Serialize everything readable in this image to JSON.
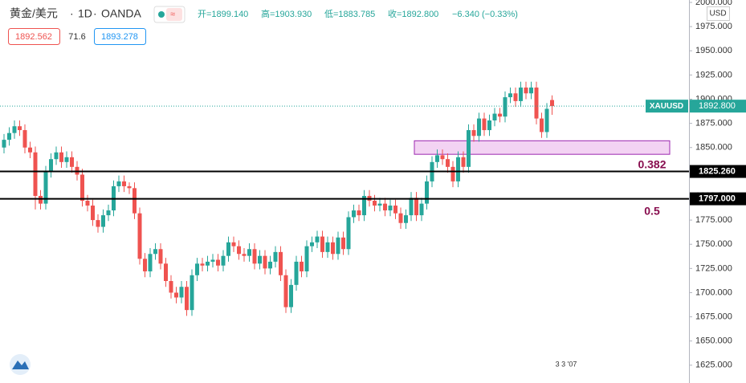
{
  "header": {
    "symbol": "黄金/美元",
    "interval": "1D",
    "source": "OANDA",
    "open": "开=1899.140",
    "high": "高=1903.930",
    "low": "低=1883.785",
    "close": "收=1892.800",
    "change": "−6.340 (−0.33%)",
    "sell": "1892.562",
    "spread": "71.6",
    "buy": "1893.278",
    "currency": "USD",
    "footer": "3 3 '07"
  },
  "chart_data": {
    "type": "candlestick",
    "up_color": "#26a69a",
    "down_color": "#ef5350",
    "ylim": [
      1606.6,
      2002.5
    ],
    "yticks": [
      {
        "value": 1625,
        "label": "1625.000"
      },
      {
        "value": 1650,
        "label": "1650.000"
      },
      {
        "value": 1675,
        "label": "1675.000"
      },
      {
        "value": 1700,
        "label": "1700.000"
      },
      {
        "value": 1725,
        "label": "1725.000"
      },
      {
        "value": 1750,
        "label": "1750.000"
      },
      {
        "value": 1775,
        "label": "1775.000"
      },
      {
        "value": 1800,
        "label": "1800.000"
      },
      {
        "value": 1825,
        "label": "1825.000"
      },
      {
        "value": 1850,
        "label": "1850.000"
      },
      {
        "value": 1875,
        "label": "1875.000"
      },
      {
        "value": 1900,
        "label": "1900.000"
      },
      {
        "value": 1925,
        "label": "1925.000"
      },
      {
        "value": 1950,
        "label": "1950.000"
      },
      {
        "value": 1975,
        "label": "1975.000"
      },
      {
        "value": 2000,
        "label": "2000.000"
      }
    ],
    "open": [
      1850,
      1858,
      1865,
      1872,
      1868,
      1850,
      1845,
      1800,
      1792,
      1825,
      1838,
      1845,
      1835,
      1840,
      1830,
      1822,
      1795,
      1790,
      1775,
      1768,
      1780,
      1785,
      1810,
      1815,
      1810,
      1808,
      1782,
      1735,
      1722,
      1740,
      1745,
      1730,
      1712,
      1700,
      1695,
      1706,
      1682,
      1718,
      1730,
      1728,
      1732,
      1734,
      1728,
      1738,
      1752,
      1748,
      1740,
      1738,
      1745,
      1730,
      1738,
      1725,
      1732,
      1742,
      1718,
      1685,
      1708,
      1732,
      1722,
      1748,
      1752,
      1758,
      1742,
      1752,
      1740,
      1757,
      1745,
      1778,
      1785,
      1780,
      1800,
      1795,
      1790,
      1792,
      1785,
      1790,
      1782,
      1772,
      1780,
      1798,
      1780,
      1792,
      1815,
      1835,
      1842,
      1838,
      1830,
      1815,
      1840,
      1830,
      1868,
      1862,
      1880,
      1868,
      1878,
      1885,
      1882,
      1902,
      1906,
      1898,
      1912,
      1906,
      1912,
      1880,
      1866,
      1899.14
    ],
    "high": [
      1864,
      1871,
      1878,
      1878,
      1874,
      1856,
      1851,
      1806,
      1831,
      1844,
      1851,
      1851,
      1846,
      1846,
      1836,
      1828,
      1801,
      1796,
      1781,
      1786,
      1791,
      1816,
      1821,
      1821,
      1814,
      1814,
      1788,
      1741,
      1746,
      1751,
      1751,
      1736,
      1718,
      1706,
      1712,
      1712,
      1724,
      1736,
      1736,
      1738,
      1740,
      1740,
      1744,
      1758,
      1758,
      1754,
      1746,
      1751,
      1751,
      1744,
      1744,
      1738,
      1748,
      1748,
      1724,
      1714,
      1738,
      1738,
      1754,
      1758,
      1764,
      1764,
      1758,
      1758,
      1763,
      1763,
      1784,
      1791,
      1791,
      1806,
      1806,
      1801,
      1798,
      1798,
      1796,
      1796,
      1788,
      1786,
      1804,
      1804,
      1798,
      1821,
      1841,
      1848,
      1848,
      1844,
      1836,
      1846,
      1846,
      1874,
      1874,
      1886,
      1886,
      1884,
      1891,
      1891,
      1908,
      1912,
      1912,
      1918,
      1918,
      1918,
      1918,
      1886,
      1896,
      1903.93
    ],
    "low": [
      1844,
      1852,
      1859,
      1862,
      1844,
      1839,
      1786,
      1786,
      1786,
      1819,
      1832,
      1829,
      1829,
      1824,
      1816,
      1789,
      1784,
      1769,
      1762,
      1762,
      1774,
      1779,
      1804,
      1804,
      1802,
      1776,
      1729,
      1716,
      1716,
      1734,
      1724,
      1706,
      1694,
      1689,
      1689,
      1676,
      1676,
      1712,
      1722,
      1722,
      1726,
      1722,
      1722,
      1732,
      1742,
      1734,
      1732,
      1732,
      1724,
      1724,
      1719,
      1719,
      1726,
      1712,
      1679,
      1679,
      1702,
      1716,
      1716,
      1742,
      1746,
      1736,
      1736,
      1734,
      1734,
      1739,
      1739,
      1772,
      1774,
      1774,
      1789,
      1784,
      1784,
      1779,
      1779,
      1776,
      1766,
      1766,
      1774,
      1774,
      1774,
      1786,
      1809,
      1829,
      1832,
      1824,
      1809,
      1809,
      1824,
      1824,
      1856,
      1856,
      1862,
      1862,
      1872,
      1876,
      1876,
      1896,
      1892,
      1892,
      1900,
      1900,
      1874,
      1860,
      1860,
      1883.785
    ],
    "close": [
      1858,
      1865,
      1872,
      1868,
      1850,
      1845,
      1800,
      1792,
      1825,
      1838,
      1845,
      1835,
      1840,
      1830,
      1822,
      1795,
      1790,
      1775,
      1768,
      1780,
      1785,
      1810,
      1815,
      1810,
      1808,
      1782,
      1735,
      1722,
      1740,
      1745,
      1730,
      1712,
      1700,
      1695,
      1706,
      1682,
      1718,
      1730,
      1728,
      1732,
      1734,
      1728,
      1738,
      1752,
      1748,
      1740,
      1738,
      1745,
      1730,
      1738,
      1725,
      1732,
      1742,
      1718,
      1685,
      1708,
      1732,
      1722,
      1748,
      1752,
      1758,
      1742,
      1752,
      1740,
      1757,
      1745,
      1778,
      1785,
      1780,
      1800,
      1795,
      1790,
      1792,
      1785,
      1790,
      1782,
      1772,
      1780,
      1798,
      1780,
      1792,
      1815,
      1835,
      1842,
      1838,
      1830,
      1815,
      1840,
      1830,
      1868,
      1862,
      1880,
      1868,
      1878,
      1885,
      1882,
      1902,
      1906,
      1898,
      1912,
      1906,
      1912,
      1880,
      1866,
      1890,
      1892.8
    ],
    "levels": [
      {
        "value": 1825.26,
        "label": "1825.260",
        "ratio": "0.382"
      },
      {
        "value": 1797,
        "label": "1797.000",
        "ratio": "0.5"
      }
    ],
    "zone": [
      1843,
      1857
    ],
    "last_price": {
      "value": 1892.8,
      "label": "1892.800",
      "symbol": "XAUUSD"
    }
  }
}
